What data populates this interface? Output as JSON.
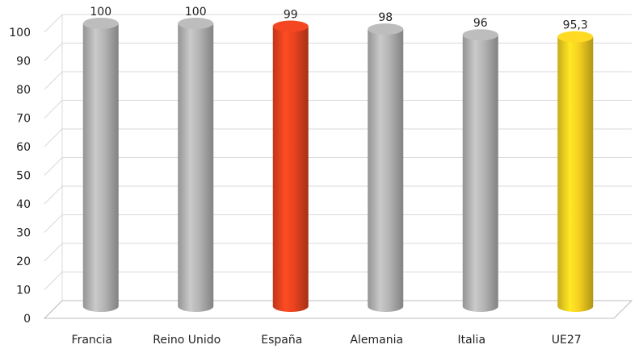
{
  "chart_data": {
    "type": "bar",
    "categories": [
      "Francia",
      "Reino Unido",
      "España",
      "Alemania",
      "Italia",
      "UE27"
    ],
    "values": [
      100,
      100,
      99,
      98,
      96,
      95.3
    ],
    "data_labels": [
      "100",
      "100",
      "99",
      "98",
      "96",
      "95,3"
    ],
    "ylim": [
      0,
      100
    ],
    "yticks": [
      "0",
      "10",
      "20",
      "30",
      "40",
      "50",
      "60",
      "70",
      "80",
      "90",
      "100"
    ],
    "grid": true,
    "colors": {
      "default": "#b4b4b4",
      "highlight": "#e8431f",
      "aggregate": "#f5d020",
      "grid": "#d9d9d9",
      "axis": "#bdbdbd"
    },
    "bar_color_keys": [
      "default",
      "default",
      "highlight",
      "default",
      "default",
      "aggregate"
    ]
  }
}
